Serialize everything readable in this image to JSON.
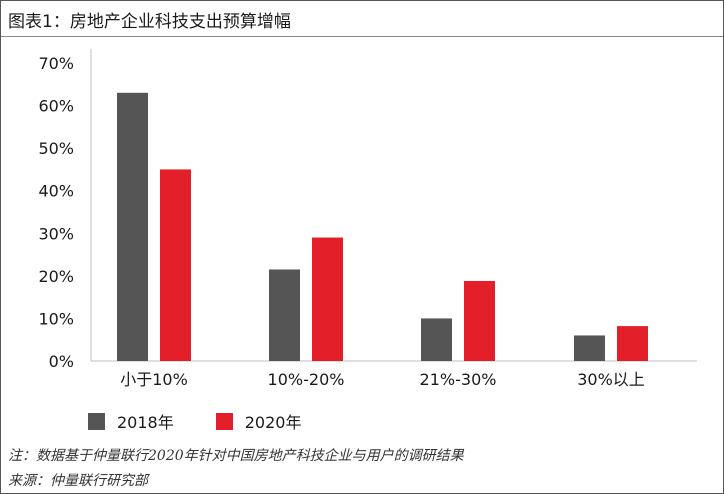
{
  "title": "图表1：房地产企业科技支出预算增幅",
  "colors": {
    "series_2018": "#555555",
    "series_2020": "#e3202a",
    "axis": "#bfbfbf"
  },
  "chart_data": {
    "type": "bar",
    "title": "图表1：房地产企业科技支出预算增幅",
    "categories": [
      "小于10%",
      "10%-20%",
      "21%-30%",
      "30%以上"
    ],
    "series": [
      {
        "name": "2018年",
        "values": [
          63,
          21.5,
          10,
          6
        ]
      },
      {
        "name": "2020年",
        "values": [
          45,
          29,
          18.8,
          8.2
        ]
      }
    ],
    "ylim": [
      0,
      70
    ],
    "yticks": [
      "0%",
      "10%",
      "20%",
      "30%",
      "40%",
      "50%",
      "60%",
      "70%"
    ],
    "xlabel": "",
    "ylabel": "",
    "grid": false,
    "legend": "bottom-left"
  },
  "footnotes": {
    "note": "注：数据基于仲量联行2020年针对中国房地产科技企业与用户的调研结果",
    "source": "来源：仲量联行研究部"
  }
}
